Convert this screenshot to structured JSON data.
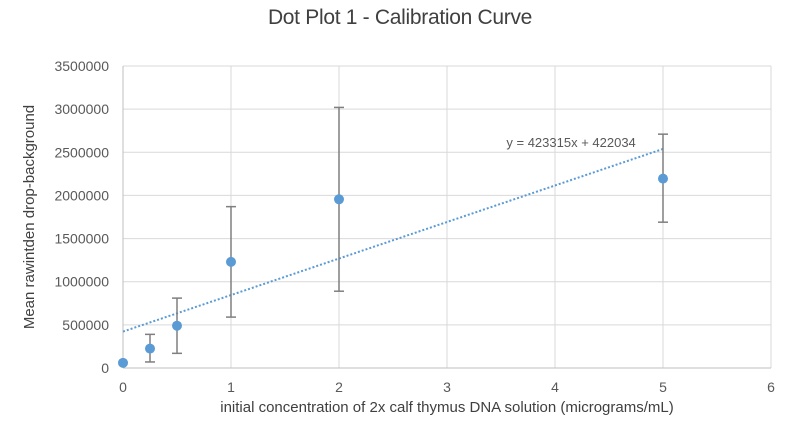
{
  "chart_data": {
    "type": "scatter",
    "title": "Dot Plot 1 - Calibration Curve",
    "xlabel": "initial concentration of 2x calf thymus DNA solution (micrograms/mL)",
    "ylabel": "Mean rawintden drop-background",
    "xlim": [
      0,
      6
    ],
    "ylim": [
      0,
      3500000
    ],
    "x_ticks": [
      0,
      1,
      2,
      3,
      4,
      5,
      6
    ],
    "y_ticks": [
      0,
      500000,
      1000000,
      1500000,
      2000000,
      2500000,
      3000000,
      3500000
    ],
    "grid": true,
    "legend": null,
    "series": [
      {
        "name": "Mean rawintden drop-background",
        "color": "#5B9BD5",
        "points": [
          {
            "x": 0,
            "y": 60000,
            "err_low": 60000,
            "err_high": 60000
          },
          {
            "x": 0.25,
            "y": 225000,
            "err_low": 70000,
            "err_high": 390000
          },
          {
            "x": 0.5,
            "y": 490000,
            "err_low": 170000,
            "err_high": 810000
          },
          {
            "x": 1,
            "y": 1230000,
            "err_low": 590000,
            "err_high": 1870000
          },
          {
            "x": 2,
            "y": 1955000,
            "err_low": 890000,
            "err_high": 3020000
          },
          {
            "x": 5,
            "y": 2195000,
            "err_low": 1690000,
            "err_high": 2710000
          }
        ]
      }
    ],
    "trendline": {
      "type": "linear",
      "slope": 423315,
      "intercept": 422034,
      "x_range": [
        0,
        5
      ],
      "equation_label": "y = 423315x + 422034",
      "label_position": {
        "x": 3.55,
        "y": 2560000
      },
      "color": "#5B9BD5",
      "style": "dotted"
    },
    "colors": {
      "marker": "#5B9BD5",
      "error_bar": "#7F7F7F",
      "grid": "#D9D9D9",
      "axis": "#BFBFBF",
      "text": "#595959"
    }
  }
}
